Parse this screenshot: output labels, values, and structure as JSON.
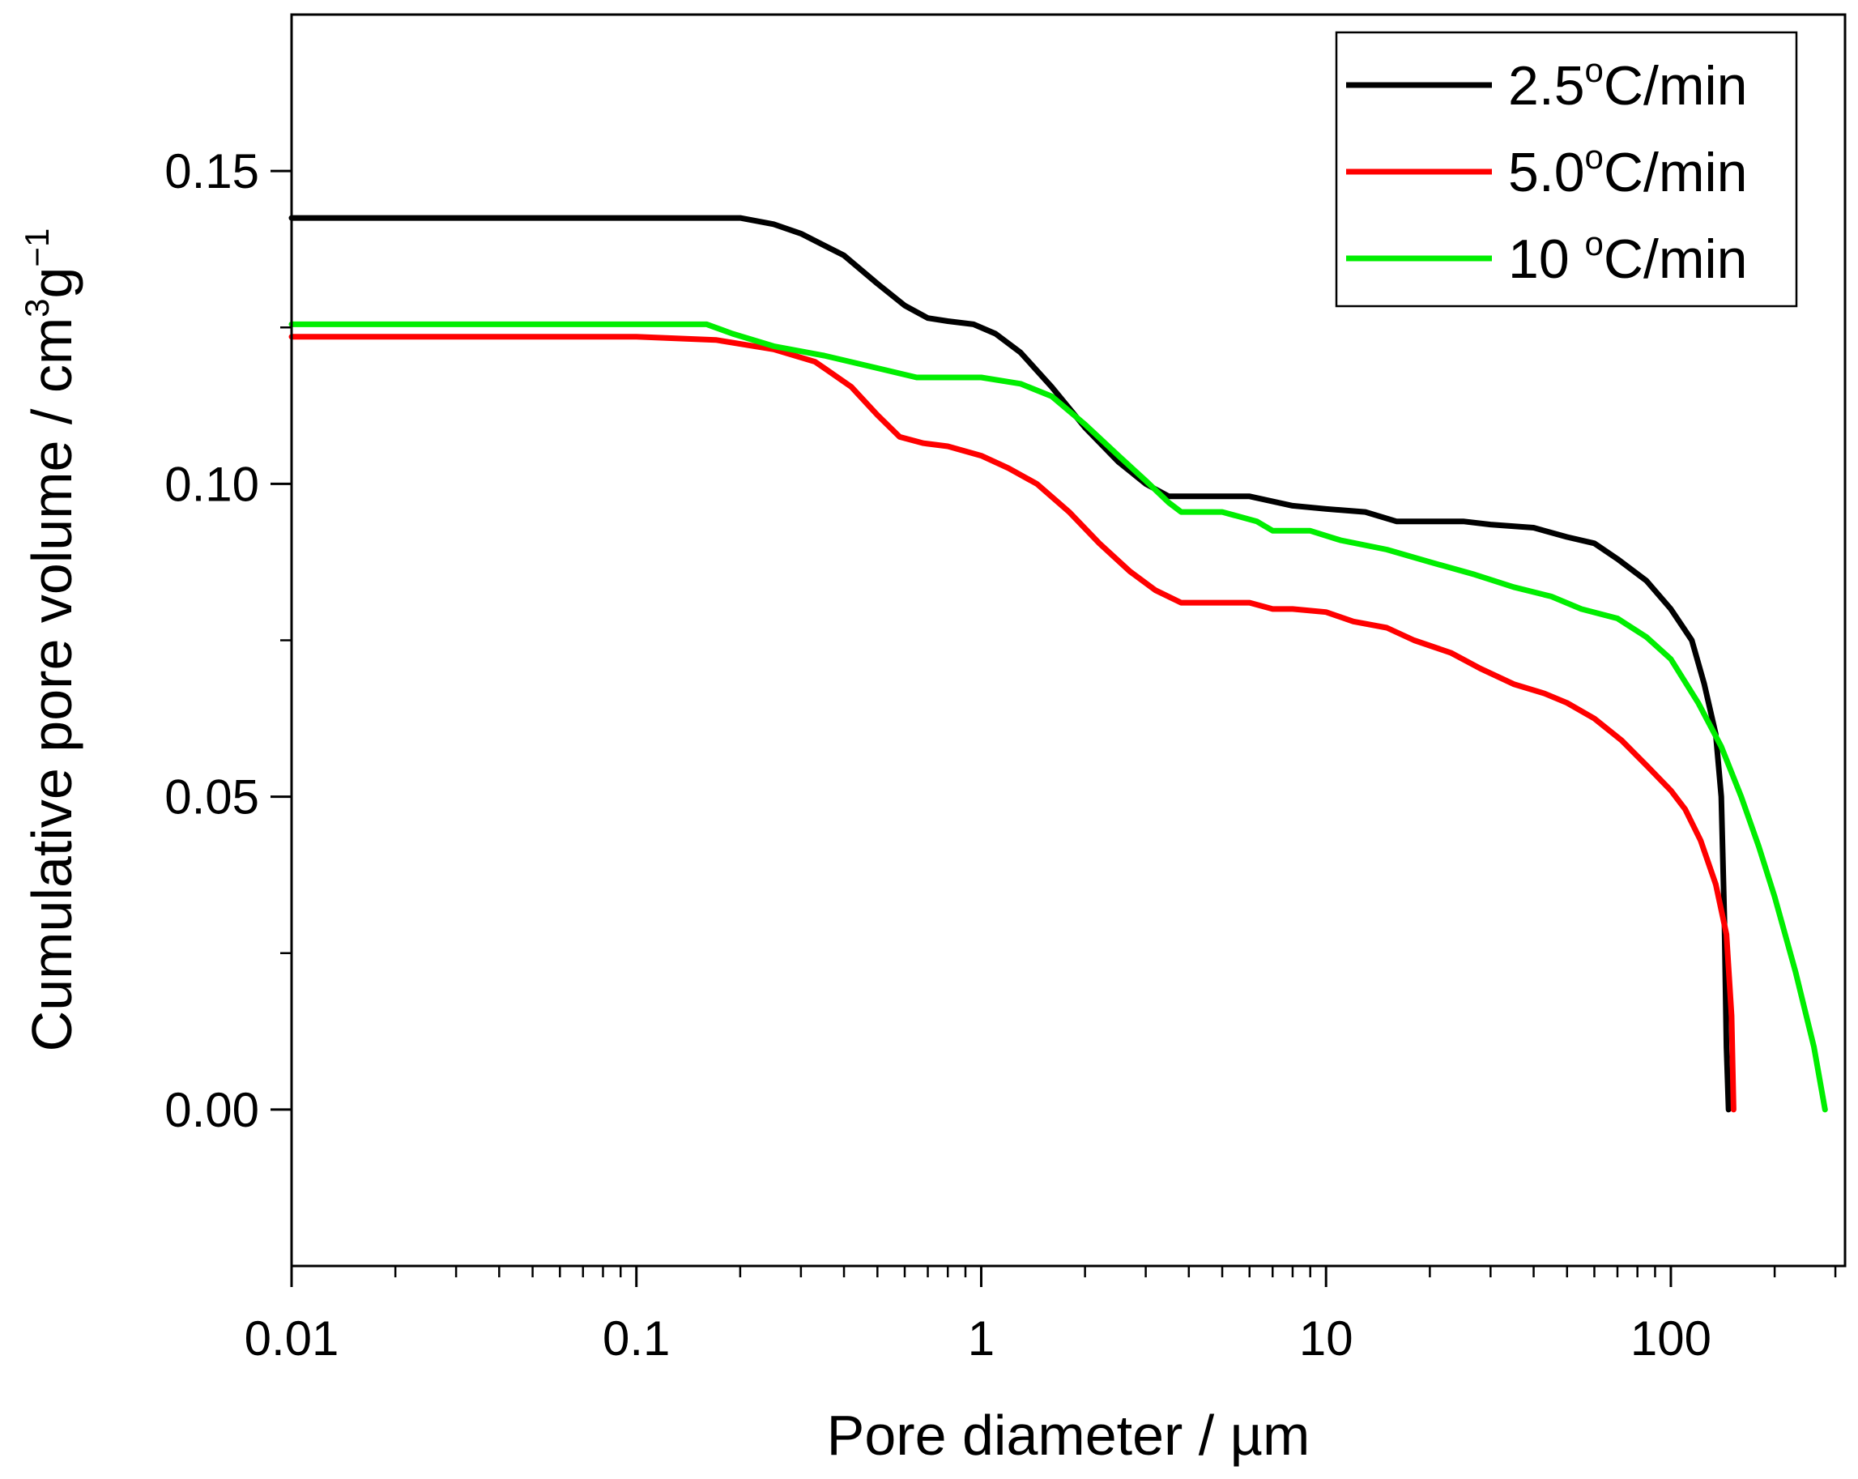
{
  "chart_data": {
    "type": "line",
    "xscale": "log",
    "xlabel": "Pore diameter / µm",
    "ylabel": {
      "base": "Cumulative pore volume / cm",
      "sup1": "3",
      "mid": "g",
      "sup2": "−1"
    },
    "xlim": [
      0.01,
      320
    ],
    "ylim": [
      -0.025,
      0.175
    ],
    "xticks": [
      0.01,
      0.1,
      1,
      10,
      100
    ],
    "xtick_labels": [
      "0.01",
      "0.1",
      "1",
      "10",
      "100"
    ],
    "yticks": [
      0.0,
      0.05,
      0.1,
      0.15
    ],
    "ytick_labels": [
      "0.00",
      "0.05",
      "0.10",
      "0.15"
    ],
    "legend": {
      "placement": "top-right"
    },
    "series": [
      {
        "name": "2.5°C/min",
        "label_main": "2.5",
        "label_sup": "o",
        "label_unit": "C/min",
        "color": "#000000",
        "points": [
          [
            0.01,
            0.1425
          ],
          [
            0.1,
            0.1425
          ],
          [
            0.2,
            0.1425
          ],
          [
            0.25,
            0.1415
          ],
          [
            0.3,
            0.14
          ],
          [
            0.4,
            0.1365
          ],
          [
            0.5,
            0.132
          ],
          [
            0.6,
            0.1285
          ],
          [
            0.7,
            0.1265
          ],
          [
            0.8,
            0.126
          ],
          [
            0.95,
            0.1255
          ],
          [
            1.1,
            0.124
          ],
          [
            1.3,
            0.121
          ],
          [
            1.6,
            0.1155
          ],
          [
            2.0,
            0.109
          ],
          [
            2.5,
            0.1035
          ],
          [
            3.0,
            0.1
          ],
          [
            3.5,
            0.098
          ],
          [
            4,
            0.098
          ],
          [
            6,
            0.098
          ],
          [
            8,
            0.0965
          ],
          [
            10,
            0.096
          ],
          [
            13,
            0.0955
          ],
          [
            16,
            0.094
          ],
          [
            20,
            0.094
          ],
          [
            25,
            0.094
          ],
          [
            30,
            0.0935
          ],
          [
            40,
            0.093
          ],
          [
            50,
            0.0915
          ],
          [
            60,
            0.0905
          ],
          [
            70,
            0.088
          ],
          [
            85,
            0.0845
          ],
          [
            100,
            0.08
          ],
          [
            115,
            0.075
          ],
          [
            125,
            0.068
          ],
          [
            135,
            0.06
          ],
          [
            140,
            0.05
          ],
          [
            143,
            0.03
          ],
          [
            145,
            0.01
          ],
          [
            147,
            0.0
          ]
        ]
      },
      {
        "name": "5.0°C/min",
        "label_main": "5.0",
        "label_sup": "o",
        "label_unit": "C/min",
        "color": "#ff0000",
        "points": [
          [
            0.01,
            0.1235
          ],
          [
            0.1,
            0.1235
          ],
          [
            0.17,
            0.123
          ],
          [
            0.25,
            0.1215
          ],
          [
            0.33,
            0.1195
          ],
          [
            0.42,
            0.1155
          ],
          [
            0.5,
            0.111
          ],
          [
            0.58,
            0.1075
          ],
          [
            0.68,
            0.1065
          ],
          [
            0.8,
            0.106
          ],
          [
            1.0,
            0.1045
          ],
          [
            1.2,
            0.1025
          ],
          [
            1.45,
            0.1
          ],
          [
            1.8,
            0.0955
          ],
          [
            2.2,
            0.0905
          ],
          [
            2.7,
            0.086
          ],
          [
            3.2,
            0.083
          ],
          [
            3.8,
            0.081
          ],
          [
            5,
            0.081
          ],
          [
            6,
            0.081
          ],
          [
            7,
            0.08
          ],
          [
            8,
            0.08
          ],
          [
            10,
            0.0795
          ],
          [
            12,
            0.078
          ],
          [
            15,
            0.077
          ],
          [
            18,
            0.075
          ],
          [
            23,
            0.073
          ],
          [
            28,
            0.0705
          ],
          [
            35,
            0.068
          ],
          [
            43,
            0.0665
          ],
          [
            50,
            0.065
          ],
          [
            60,
            0.0625
          ],
          [
            72,
            0.059
          ],
          [
            85,
            0.055
          ],
          [
            100,
            0.051
          ],
          [
            110,
            0.048
          ],
          [
            122,
            0.043
          ],
          [
            135,
            0.036
          ],
          [
            145,
            0.028
          ],
          [
            150,
            0.015
          ],
          [
            152,
            0.0
          ]
        ]
      },
      {
        "name": "10 °C/min",
        "label_main": "10 ",
        "label_sup": "o",
        "label_unit": "C/min",
        "color": "#00ee00",
        "points": [
          [
            0.01,
            0.1255
          ],
          [
            0.1,
            0.1255
          ],
          [
            0.16,
            0.1255
          ],
          [
            0.19,
            0.124
          ],
          [
            0.25,
            0.122
          ],
          [
            0.35,
            0.1205
          ],
          [
            0.5,
            0.1185
          ],
          [
            0.65,
            0.117
          ],
          [
            0.8,
            0.117
          ],
          [
            1.0,
            0.117
          ],
          [
            1.3,
            0.116
          ],
          [
            1.6,
            0.114
          ],
          [
            2.0,
            0.1095
          ],
          [
            2.5,
            0.1045
          ],
          [
            3.0,
            0.1005
          ],
          [
            3.5,
            0.097
          ],
          [
            3.8,
            0.0955
          ],
          [
            5,
            0.0955
          ],
          [
            6.3,
            0.094
          ],
          [
            7,
            0.0925
          ],
          [
            9,
            0.0925
          ],
          [
            11,
            0.091
          ],
          [
            15,
            0.0895
          ],
          [
            20,
            0.0875
          ],
          [
            27,
            0.0855
          ],
          [
            35,
            0.0835
          ],
          [
            45,
            0.082
          ],
          [
            55,
            0.08
          ],
          [
            70,
            0.0785
          ],
          [
            85,
            0.0755
          ],
          [
            100,
            0.072
          ],
          [
            120,
            0.065
          ],
          [
            140,
            0.058
          ],
          [
            160,
            0.05
          ],
          [
            180,
            0.042
          ],
          [
            200,
            0.034
          ],
          [
            230,
            0.022
          ],
          [
            260,
            0.01
          ],
          [
            280,
            0.0
          ]
        ]
      }
    ]
  }
}
